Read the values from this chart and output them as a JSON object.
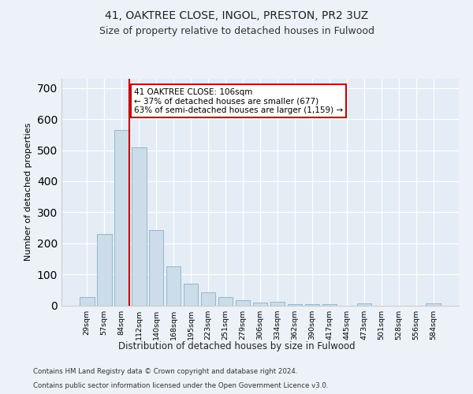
{
  "title1": "41, OAKTREE CLOSE, INGOL, PRESTON, PR2 3UZ",
  "title2": "Size of property relative to detached houses in Fulwood",
  "xlabel": "Distribution of detached houses by size in Fulwood",
  "ylabel": "Number of detached properties",
  "categories": [
    "29sqm",
    "57sqm",
    "84sqm",
    "112sqm",
    "140sqm",
    "168sqm",
    "195sqm",
    "223sqm",
    "251sqm",
    "279sqm",
    "306sqm",
    "334sqm",
    "362sqm",
    "390sqm",
    "417sqm",
    "445sqm",
    "473sqm",
    "501sqm",
    "528sqm",
    "556sqm",
    "584sqm"
  ],
  "values": [
    27,
    230,
    565,
    510,
    242,
    125,
    70,
    42,
    27,
    17,
    10,
    12,
    5,
    5,
    5,
    0,
    7,
    0,
    0,
    0,
    6
  ],
  "bar_color": "#ccdce8",
  "bar_edge_color": "#90b8d0",
  "vline_color": "#cc0000",
  "annotation_box_edge_color": "#cc0000",
  "annotation_text_line1": "41 OAKTREE CLOSE: 106sqm",
  "annotation_text_line2": "← 37% of detached houses are smaller (677)",
  "annotation_text_line3": "63% of semi-detached houses are larger (1,159) →",
  "footnote1": "Contains HM Land Registry data © Crown copyright and database right 2024.",
  "footnote2": "Contains public sector information licensed under the Open Government Licence v3.0.",
  "ylim": [
    0,
    730
  ],
  "yticks": [
    0,
    100,
    200,
    300,
    400,
    500,
    600,
    700
  ],
  "bg_color": "#edf2f8",
  "plot_bg_color": "#e4ecf5"
}
